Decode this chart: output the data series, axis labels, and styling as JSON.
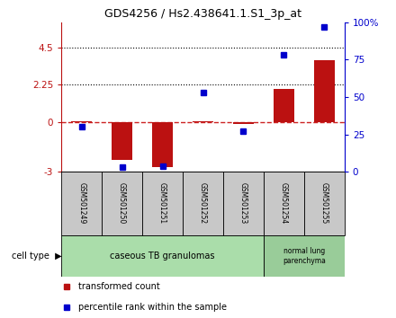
{
  "title": "GDS4256 / Hs2.438641.1.S1_3p_at",
  "samples": [
    "GSM501249",
    "GSM501250",
    "GSM501251",
    "GSM501252",
    "GSM501253",
    "GSM501254",
    "GSM501255"
  ],
  "transformed_count": [
    0.02,
    -2.3,
    -2.7,
    0.05,
    -0.12,
    2.0,
    3.7
  ],
  "percentile_rank": [
    30,
    3,
    4,
    53,
    27,
    78,
    97
  ],
  "ylim_left": [
    -3,
    6
  ],
  "ylim_right": [
    0,
    100
  ],
  "yticks_left": [
    -3,
    0,
    2.25,
    4.5
  ],
  "yticks_right": [
    0,
    25,
    50,
    75,
    100
  ],
  "ytick_labels_left": [
    "-3",
    "0",
    "2.25",
    "4.5"
  ],
  "ytick_labels_right": [
    "0",
    "25",
    "50",
    "75",
    "100%"
  ],
  "hlines": [
    2.25,
    4.5
  ],
  "bar_color": "#bb1111",
  "dot_color": "#0000cc",
  "dashed_line_color": "#cc2222",
  "group1_color": "#aaddaa",
  "group2_color": "#99cc99",
  "cell_type_label": "cell type",
  "legend_items": [
    {
      "color": "#bb1111",
      "label": "transformed count"
    },
    {
      "color": "#0000cc",
      "label": "percentile rank within the sample"
    }
  ],
  "figsize": [
    4.4,
    3.54
  ],
  "dpi": 100
}
